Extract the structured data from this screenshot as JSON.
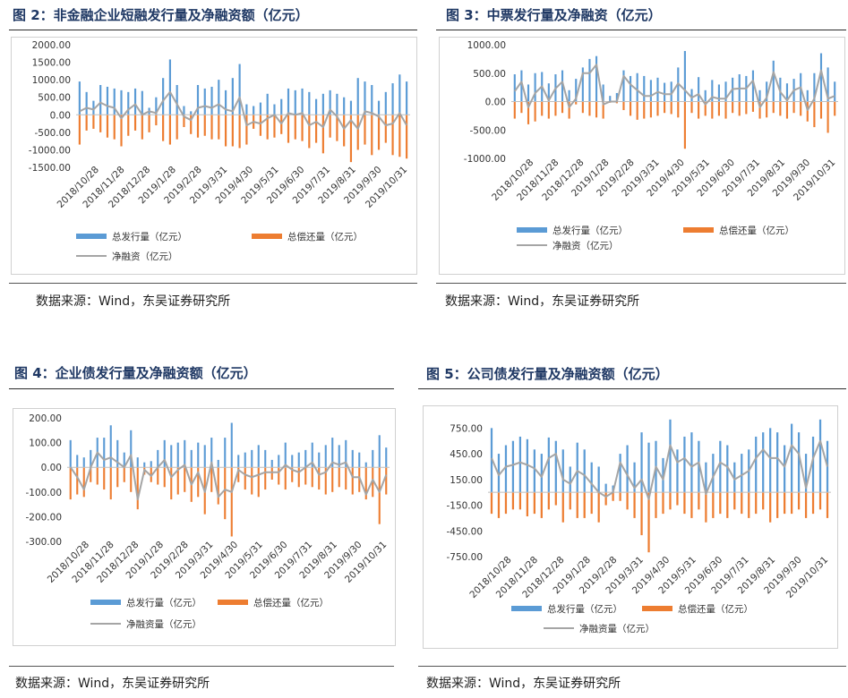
{
  "colors": {
    "issue": "#5b9bd5",
    "repay": "#ed7d31",
    "net": "#a5a5a5",
    "title": "#1f3864"
  },
  "panels": [
    {
      "title": "图 2：非金融企业短融发行量及净融资额（亿元）",
      "source": "数据来源：Wind，东吴证券研究所",
      "legend": {
        "issue": "总发行量（亿元）",
        "repay": "总偿还量（亿元）",
        "net": "净融资（亿元）"
      },
      "chart_data": {
        "type": "bar",
        "y_ticks": [
          "2000.00",
          "1500.00",
          "1000.00",
          "500.00",
          "0.00",
          "-500.00",
          "-1000.00",
          "-1500.00"
        ],
        "ylim": [
          -1500,
          2000
        ],
        "x_tick_labels": [
          "2018/10/28",
          "2018/11/28",
          "2018/12/28",
          "2019/1/28",
          "2019/2/28",
          "2019/3/31",
          "2019/4/30",
          "2019/5/31",
          "2019/6/30",
          "2019/7/31",
          "2019/8/31",
          "2019/9/30",
          "2019/10/31"
        ],
        "series": [
          {
            "name": "总发行量（亿元）",
            "values": [
              950,
              650,
              400,
              850,
              800,
              750,
              700,
              650,
              750,
              680,
              200,
              500,
              1050,
              1580,
              850,
              250,
              100,
              850,
              750,
              800,
              1000,
              700,
              1050,
              1450,
              300,
              250,
              350,
              600,
              300,
              450,
              750,
              700,
              750,
              650,
              450,
              600,
              700,
              600,
              500,
              400,
              1050,
              950,
              850,
              400,
              650,
              900,
              1150,
              950
            ]
          },
          {
            "name": "总偿还量（亿元）",
            "values": [
              -850,
              -450,
              -400,
              -500,
              -650,
              -700,
              -900,
              -600,
              -450,
              -700,
              -500,
              -300,
              -750,
              -850,
              -700,
              -350,
              -550,
              -650,
              -600,
              -700,
              -700,
              -900,
              -900,
              -950,
              -850,
              -400,
              -600,
              -700,
              -650,
              -550,
              -800,
              -700,
              -750,
              -950,
              -800,
              -1100,
              -650,
              -750,
              -900,
              -1350,
              -1000,
              -850,
              -1150,
              -1000,
              -800,
              -1150,
              -1200,
              -1250
            ]
          },
          {
            "name": "净融资（亿元）",
            "values": [
              100,
              200,
              150,
              350,
              250,
              200,
              -100,
              150,
              300,
              0,
              100,
              50,
              400,
              650,
              300,
              -50,
              -150,
              200,
              250,
              200,
              300,
              150,
              100,
              500,
              -300,
              -200,
              -250,
              -100,
              0,
              -250,
              50,
              0,
              50,
              -300,
              -200,
              -350,
              150,
              -50,
              -400,
              -150,
              -400,
              100,
              50,
              -50,
              -300,
              -250,
              50,
              -300
            ]
          }
        ]
      }
    },
    {
      "title": "图 3：中票发行量及净融资（亿元）",
      "source": "数据来源：Wind，东吴证券研究所",
      "legend": {
        "issue": "总发行量（亿元）",
        "repay": "总偿还量（亿元）",
        "net": "净融资（亿元）"
      },
      "chart_data": {
        "type": "bar",
        "y_ticks": [
          "1000.00",
          "500.00",
          "0.00",
          "-500.00",
          "-1000.00"
        ],
        "ylim": [
          -1000,
          1000
        ],
        "x_tick_labels": [
          "2018/10/28",
          "2018/11/28",
          "2018/12/28",
          "2019/1/28",
          "2019/2/28",
          "2019/3/31",
          "2019/4/30",
          "2019/5/31",
          "2019/6/30",
          "2019/7/31",
          "2019/8/31",
          "2019/9/30",
          "2019/10/31"
        ],
        "series": [
          {
            "name": "总发行量（亿元）",
            "values": [
              480,
              550,
              300,
              500,
              520,
              320,
              480,
              550,
              200,
              400,
              600,
              750,
              800,
              300,
              100,
              150,
              550,
              450,
              500,
              450,
              380,
              420,
              330,
              350,
              600,
              890,
              220,
              430,
              200,
              380,
              300,
              350,
              420,
              480,
              450,
              550,
              200,
              350,
              720,
              420,
              320,
              400,
              500,
              200,
              500,
              850,
              600,
              350
            ]
          },
          {
            "name": "总偿还量（亿元）",
            "values": [
              -300,
              -200,
              -400,
              -350,
              -250,
              -300,
              -250,
              -200,
              -300,
              -50,
              -200,
              -250,
              -280,
              -300,
              -20,
              -30,
              -150,
              -250,
              -320,
              -300,
              -280,
              -250,
              -200,
              -220,
              -280,
              -830,
              -200,
              -300,
              -250,
              -300,
              -250,
              -300,
              -200,
              -250,
              -220,
              -180,
              -300,
              -280,
              -200,
              -250,
              -300,
              -200,
              -250,
              -350,
              -450,
              -300,
              -550,
              -250
            ]
          },
          {
            "name": "净融资（亿元）",
            "values": [
              180,
              350,
              -100,
              150,
              270,
              20,
              230,
              350,
              -100,
              50,
              500,
              500,
              650,
              -50,
              0,
              0,
              450,
              300,
              200,
              100,
              100,
              170,
              130,
              130,
              320,
              200,
              70,
              130,
              -50,
              80,
              50,
              50,
              220,
              230,
              230,
              370,
              -100,
              70,
              520,
              170,
              20,
              200,
              250,
              -150,
              50,
              550,
              50,
              100
            ]
          }
        ]
      }
    },
    {
      "title": "图 4：企业债发行量及净融资额（亿元）",
      "source": "数据来源：Wind，东吴证券研究所",
      "legend": {
        "issue": "总发行量（亿元）",
        "repay": "总偿还量（亿元）",
        "net": "净融资量（亿元）"
      },
      "chart_data": {
        "type": "bar",
        "y_ticks": [
          "200.00",
          "100.00",
          "0.00",
          "-100.00",
          "-200.00",
          "-300.00"
        ],
        "ylim": [
          -300,
          200
        ],
        "x_tick_labels": [
          "2018/10/28",
          "2018/11/28",
          "2018/12/28",
          "2019/1/28",
          "2019/2/28",
          "2019/3/31",
          "2019/4/30",
          "2019/5/31",
          "2019/6/30",
          "2019/7/31",
          "2019/8/31",
          "2019/9/30",
          "2019/10/31"
        ],
        "series": [
          {
            "name": "总发行量（亿元）",
            "values": [
              110,
              50,
              40,
              70,
              120,
              120,
              170,
              110,
              60,
              150,
              40,
              20,
              25,
              70,
              110,
              90,
              100,
              110,
              70,
              100,
              90,
              120,
              30,
              120,
              180,
              50,
              60,
              70,
              90,
              70,
              30,
              50,
              100,
              50,
              60,
              70,
              100,
              60,
              90,
              120,
              90,
              110,
              70,
              60,
              20,
              70,
              130,
              80
            ]
          },
          {
            "name": "总偿还量（亿元）",
            "values": [
              -130,
              -110,
              -120,
              -60,
              -70,
              -90,
              -130,
              -80,
              -60,
              -100,
              -170,
              -30,
              -60,
              -70,
              -80,
              -130,
              -110,
              -100,
              -140,
              -120,
              -190,
              -100,
              -150,
              -210,
              -280,
              -60,
              -90,
              -110,
              -120,
              -90,
              -50,
              -70,
              -90,
              -60,
              -80,
              -70,
              -80,
              -90,
              -110,
              -100,
              -80,
              -90,
              -110,
              -100,
              -130,
              -120,
              -230,
              -110
            ]
          },
          {
            "name": "净融资量（亿元）",
            "values": [
              0,
              -40,
              -90,
              0,
              60,
              30,
              40,
              20,
              0,
              50,
              -130,
              -10,
              -35,
              0,
              30,
              -40,
              -10,
              10,
              -70,
              -20,
              -100,
              20,
              -120,
              -90,
              -100,
              -10,
              -30,
              -40,
              -30,
              -20,
              -20,
              -20,
              10,
              -10,
              -20,
              0,
              20,
              -30,
              -20,
              20,
              10,
              20,
              -40,
              -40,
              -110,
              -50,
              -100,
              -30
            ]
          }
        ]
      }
    },
    {
      "title": "图 5：公司债发行量及净融资额（亿元）",
      "source": "数据来源：Wind，东吴证券研究所",
      "legend": {
        "issue": "总发行量（亿元）",
        "repay": "总偿还量（亿元）",
        "net": "净融资量（亿元）"
      },
      "chart_data": {
        "type": "bar",
        "y_ticks": [
          "750.00",
          "450.00",
          "150.00",
          "-150.00",
          "-450.00",
          "-750.00"
        ],
        "ylim": [
          -750,
          900
        ],
        "x_tick_labels": [
          "2018/10/28",
          "2018/11/28",
          "2018/12/28",
          "2019/1/28",
          "2019/2/28",
          "2019/3/31",
          "2019/4/30",
          "2019/5/31",
          "2019/6/30",
          "2019/7/31",
          "2019/8/31",
          "2019/9/30",
          "2019/10/31"
        ],
        "series": [
          {
            "name": "总发行量（亿元）",
            "values": [
              750,
              450,
              550,
              600,
              650,
              620,
              500,
              450,
              640,
              600,
              500,
              300,
              580,
              500,
              350,
              300,
              100,
              80,
              450,
              550,
              350,
              700,
              580,
              600,
              400,
              850,
              500,
              650,
              700,
              600,
              350,
              450,
              600,
              550,
              350,
              450,
              500,
              650,
              700,
              750,
              700,
              550,
              800,
              700,
              450,
              650,
              850,
              600
            ]
          },
          {
            "name": "总偿还量（亿元）",
            "values": [
              -250,
              -300,
              -250,
              -200,
              -200,
              -280,
              -250,
              -300,
              -200,
              -150,
              -350,
              -200,
              -300,
              -300,
              -250,
              -350,
              -150,
              -100,
              -100,
              -200,
              -300,
              -500,
              -700,
              -300,
              -250,
              -200,
              -150,
              -250,
              -300,
              -200,
              -350,
              -300,
              -250,
              -300,
              -200,
              -250,
              -300,
              -250,
              -200,
              -350,
              -300,
              -250,
              -250,
              -200,
              -300,
              -250,
              -200,
              -300
            ]
          },
          {
            "name": "净融资量（亿元）",
            "values": [
              400,
              200,
              300,
              320,
              350,
              320,
              280,
              180,
              400,
              450,
              150,
              100,
              250,
              200,
              100,
              0,
              -50,
              0,
              350,
              200,
              50,
              150,
              -80,
              300,
              150,
              550,
              350,
              400,
              300,
              350,
              -20,
              180,
              350,
              300,
              150,
              200,
              250,
              400,
              500,
              400,
              400,
              300,
              550,
              450,
              50,
              400,
              600,
              300
            ]
          }
        ]
      }
    }
  ]
}
